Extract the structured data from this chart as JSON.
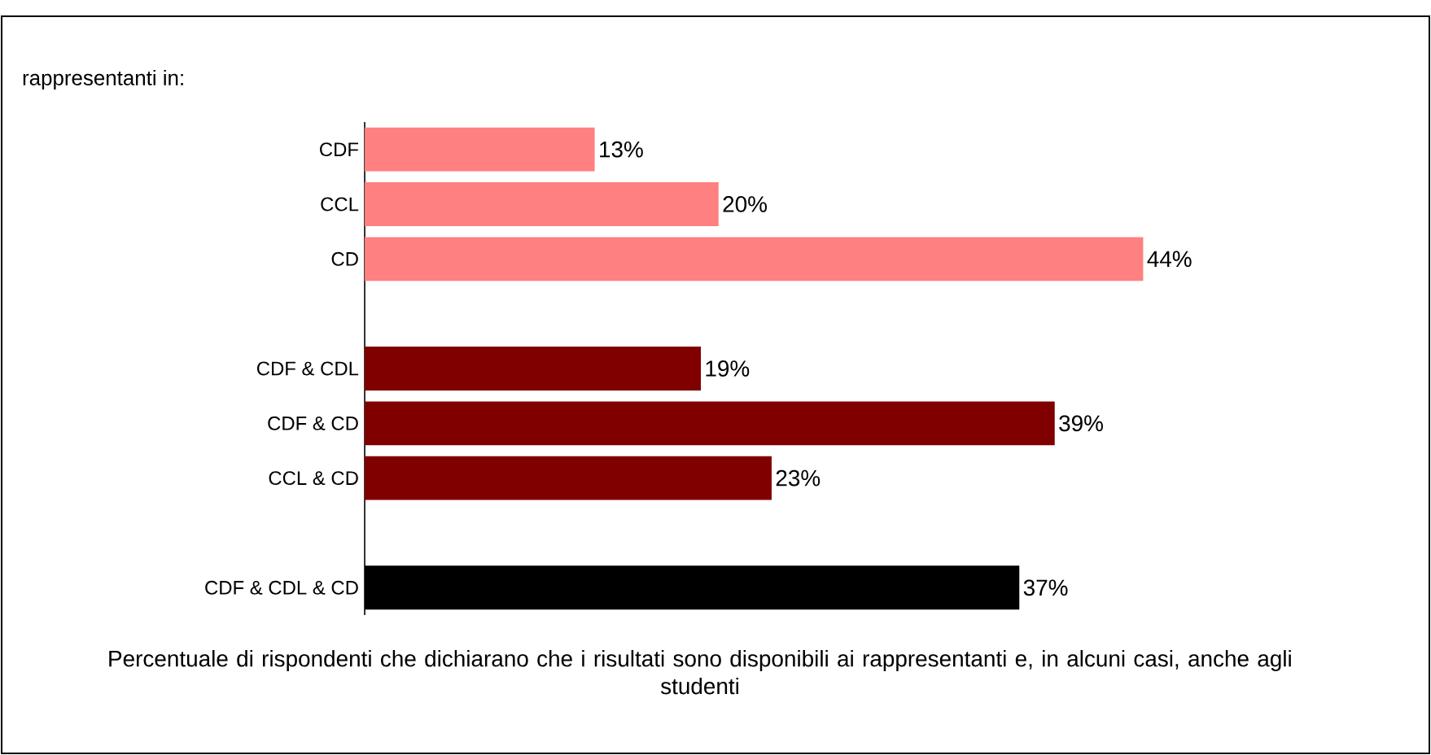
{
  "chart_data": {
    "type": "bar",
    "orientation": "horizontal",
    "title": "rappresentanti in:",
    "categories": [
      "CDF",
      "CCL",
      "CD",
      null,
      "CDF & CDL",
      "CDF & CD",
      "CCL & CD",
      null,
      "CDF & CDL & CD"
    ],
    "values": [
      13,
      20,
      44,
      null,
      19,
      39,
      23,
      null,
      37
    ],
    "value_labels": [
      "13%",
      "20%",
      "44%",
      null,
      "19%",
      "39%",
      "23%",
      null,
      "37%"
    ],
    "colors": [
      "#ff8080",
      "#ff8080",
      "#ff8080",
      null,
      "#800000",
      "#800000",
      "#800000",
      null,
      "#000000"
    ],
    "annotations": [
      "Percentuale di rispondenti che dichiarano che i risultati sono disponibili ai rappresentanti e, in alcuni casi, anche agli studenti"
    ]
  }
}
